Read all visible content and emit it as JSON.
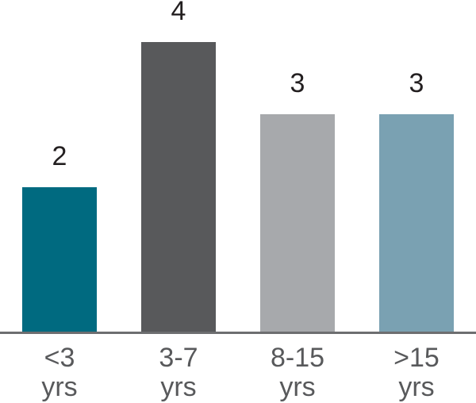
{
  "chart_data": {
    "type": "bar",
    "categories": [
      "<3 yrs",
      "3-7 yrs",
      "8-15 yrs",
      ">15 yrs"
    ],
    "category_lines": [
      [
        "<3",
        "yrs"
      ],
      [
        "3-7",
        "yrs"
      ],
      [
        "8-15",
        "yrs"
      ],
      [
        ">15",
        "yrs"
      ]
    ],
    "values": [
      2,
      4,
      3,
      3
    ],
    "data_labels": [
      "2",
      "4",
      "3",
      "3"
    ],
    "bar_colors": [
      "#006A80",
      "#58595B",
      "#A7A9AC",
      "#7AA1B2"
    ],
    "title": "",
    "xlabel": "",
    "ylabel": "",
    "ylim": [
      0,
      4
    ],
    "grid": false,
    "legend": false,
    "colors": {
      "background": "#FFFFFF",
      "axis_line": "#6D6E70",
      "value_label": "#231F20",
      "category_label": "#58595B"
    }
  }
}
